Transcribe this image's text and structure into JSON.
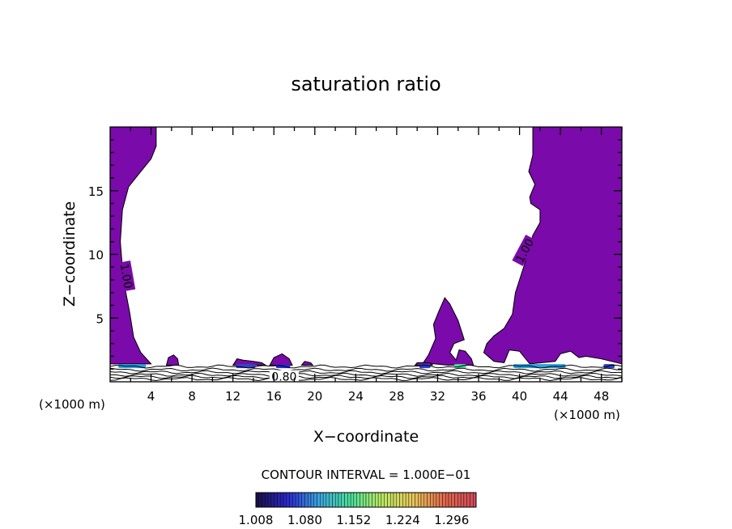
{
  "chart_data": {
    "type": "contour",
    "title": "saturation ratio",
    "xlabel": "X−coordinate",
    "ylabel": "Z−coordinate",
    "x_unit_left": "(×1000 m)",
    "x_unit_right": "(×1000 m)",
    "xlim": [
      0,
      50
    ],
    "ylim": [
      0,
      20
    ],
    "xticks": [
      4,
      8,
      12,
      16,
      20,
      24,
      28,
      32,
      36,
      40,
      44,
      48
    ],
    "yticks": [
      5,
      10,
      15
    ],
    "contour_labels": [
      {
        "text": "1.00",
        "x": 1.6,
        "z": 8.3,
        "angle": 80
      },
      {
        "text": "1.00",
        "x": 40.5,
        "z": 10.3,
        "angle": -62
      },
      {
        "text": "0.80",
        "x": 17.0,
        "z": 0.4,
        "angle": 0
      }
    ],
    "contour_interval_text": "CONTOUR INTERVAL = 1.000E−01",
    "colorbar": {
      "min": 1.008,
      "max": 1.332,
      "labels": [
        "1.008",
        "1.080",
        "1.152",
        "1.224",
        "1.296"
      ],
      "colors": [
        "#1a0f4a",
        "#2b2ad0",
        "#3aa6e0",
        "#4adf9a",
        "#b9e860",
        "#e6c85a",
        "#e06a4a",
        "#d04a5a"
      ]
    },
    "fill_color": "#7a0aaa",
    "regions": [
      {
        "name": "left",
        "points": [
          [
            0,
            20
          ],
          [
            4.5,
            20
          ],
          [
            4.5,
            18.5
          ],
          [
            4,
            17.5
          ],
          [
            3,
            16.5
          ],
          [
            1.8,
            15.3
          ],
          [
            1.2,
            13.5
          ],
          [
            1,
            11
          ],
          [
            1.3,
            8
          ],
          [
            1.9,
            5.5
          ],
          [
            2.3,
            3.5
          ],
          [
            3,
            2.3
          ],
          [
            4,
            1.4
          ],
          [
            0,
            1.4
          ]
        ]
      },
      {
        "name": "right",
        "points": [
          [
            41.5,
            20
          ],
          [
            50,
            20
          ],
          [
            50,
            1.4
          ],
          [
            48,
            1.8
          ],
          [
            46.5,
            2
          ],
          [
            45.8,
            1.9
          ],
          [
            45,
            2.4
          ],
          [
            44,
            2.2
          ],
          [
            43.5,
            1.6
          ],
          [
            41,
            1.4
          ],
          [
            40,
            2.4
          ],
          [
            39,
            2.5
          ],
          [
            38.5,
            1.5
          ],
          [
            37.5,
            1.6
          ],
          [
            36.5,
            2.3
          ],
          [
            36.8,
            3
          ],
          [
            37.5,
            3.6
          ],
          [
            38.5,
            4.2
          ],
          [
            39.3,
            5.3
          ],
          [
            39.6,
            7
          ],
          [
            40.2,
            8.5
          ],
          [
            40.8,
            10
          ],
          [
            41.3,
            11.5
          ],
          [
            42,
            12.5
          ],
          [
            42,
            13.5
          ],
          [
            41.1,
            14
          ],
          [
            41,
            14.5
          ],
          [
            41.5,
            15.5
          ],
          [
            40.9,
            16.5
          ],
          [
            41.3,
            17.8
          ],
          [
            41.3,
            20
          ]
        ]
      },
      {
        "name": "middle",
        "points": [
          [
            30.6,
            1.5
          ],
          [
            31.1,
            2.1
          ],
          [
            31.8,
            3.4
          ],
          [
            31.6,
            4.5
          ],
          [
            32.1,
            5.5
          ],
          [
            32.7,
            6.6
          ],
          [
            33.2,
            6.1
          ],
          [
            34,
            4.8
          ],
          [
            34.6,
            3.3
          ],
          [
            33.6,
            3
          ],
          [
            33.2,
            2.3
          ],
          [
            33.8,
            1.7
          ],
          [
            34.1,
            2.5
          ],
          [
            34.7,
            2.4
          ],
          [
            35.3,
            1.8
          ],
          [
            35.5,
            1.3
          ],
          [
            33,
            1.3
          ]
        ]
      },
      {
        "name": "blob1",
        "points": [
          [
            5.5,
            1.3
          ],
          [
            5.7,
            1.9
          ],
          [
            6.2,
            2.1
          ],
          [
            6.6,
            1.8
          ],
          [
            6.7,
            1.3
          ]
        ]
      },
      {
        "name": "blob2",
        "points": [
          [
            12,
            1.3
          ],
          [
            12.4,
            1.8
          ],
          [
            13,
            1.7
          ],
          [
            14,
            1.6
          ],
          [
            14.8,
            1.5
          ],
          [
            15.2,
            1.3
          ]
        ]
      },
      {
        "name": "blob3",
        "points": [
          [
            15.6,
            1.3
          ],
          [
            16,
            1.9
          ],
          [
            16.8,
            2.2
          ],
          [
            17.5,
            1.8
          ],
          [
            17.8,
            1.3
          ]
        ]
      },
      {
        "name": "blob4",
        "points": [
          [
            18.7,
            1.3
          ],
          [
            19,
            1.6
          ],
          [
            19.6,
            1.5
          ],
          [
            19.8,
            1.3
          ]
        ]
      },
      {
        "name": "blob5",
        "points": [
          [
            29.8,
            1.3
          ],
          [
            30,
            1.5
          ],
          [
            31.3,
            1.5
          ],
          [
            31.5,
            1.3
          ]
        ]
      }
    ],
    "hotspots": [
      {
        "x0": 0.8,
        "x1": 3.5,
        "color": "#2b9fdb"
      },
      {
        "x0": 12.3,
        "x1": 14.2,
        "color": "#3344cc"
      },
      {
        "x0": 16.2,
        "x1": 17.6,
        "color": "#2a2ad0"
      },
      {
        "x0": 30.2,
        "x1": 31.3,
        "color": "#2b3fcc"
      },
      {
        "x0": 33.6,
        "x1": 34.8,
        "color": "#4adf9a"
      },
      {
        "x0": 39.4,
        "x1": 44.5,
        "color": "#2b9fdb"
      },
      {
        "x0": 48.2,
        "x1": 49.3,
        "color": "#2b3fcc"
      }
    ]
  }
}
